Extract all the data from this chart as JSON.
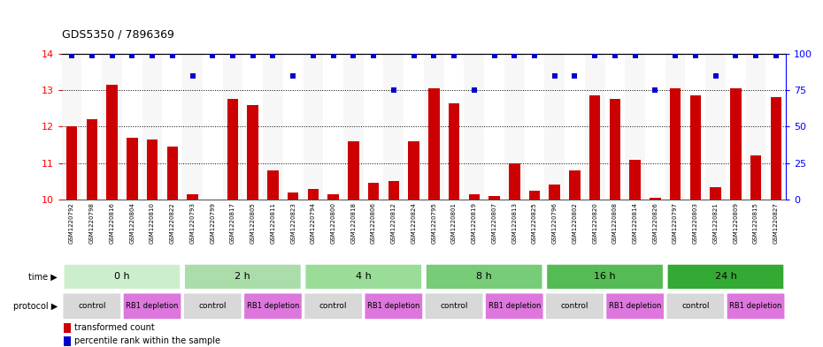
{
  "title": "GDS5350 / 7896369",
  "samples": [
    "GSM1220792",
    "GSM1220798",
    "GSM1220816",
    "GSM1220804",
    "GSM1220810",
    "GSM1220822",
    "GSM1220793",
    "GSM1220799",
    "GSM1220817",
    "GSM1220805",
    "GSM1220811",
    "GSM1220823",
    "GSM1220794",
    "GSM1220800",
    "GSM1220818",
    "GSM1220806",
    "GSM1220812",
    "GSM1220824",
    "GSM1220795",
    "GSM1220801",
    "GSM1220819",
    "GSM1220807",
    "GSM1220813",
    "GSM1220825",
    "GSM1220796",
    "GSM1220802",
    "GSM1220820",
    "GSM1220808",
    "GSM1220814",
    "GSM1220826",
    "GSM1220797",
    "GSM1220803",
    "GSM1220821",
    "GSM1220809",
    "GSM1220815",
    "GSM1220827"
  ],
  "bar_values": [
    12.0,
    12.2,
    13.15,
    11.7,
    11.65,
    11.45,
    10.15,
    10.0,
    12.75,
    12.6,
    10.8,
    10.2,
    10.3,
    10.15,
    11.6,
    10.45,
    10.5,
    11.6,
    13.05,
    12.65,
    10.15,
    10.1,
    11.0,
    10.25,
    10.4,
    10.8,
    12.85,
    12.75,
    11.1,
    10.05,
    13.05,
    12.85,
    10.35,
    13.05,
    11.2,
    12.8
  ],
  "percentile_values": [
    99,
    99,
    99,
    99,
    99,
    99,
    85,
    99,
    99,
    99,
    99,
    85,
    99,
    99,
    99,
    99,
    75,
    99,
    99,
    99,
    75,
    99,
    99,
    99,
    85,
    85,
    99,
    99,
    99,
    75,
    99,
    99,
    85,
    99,
    99,
    99
  ],
  "col_colors": [
    "#f0f0f0",
    "#ffffff"
  ],
  "time_groups": [
    {
      "label": "0 h",
      "start": 0,
      "end": 6,
      "color": "#cceecc"
    },
    {
      "label": "2 h",
      "start": 6,
      "end": 12,
      "color": "#aaddaa"
    },
    {
      "label": "4 h",
      "start": 12,
      "end": 18,
      "color": "#99dd99"
    },
    {
      "label": "8 h",
      "start": 18,
      "end": 24,
      "color": "#77cc77"
    },
    {
      "label": "16 h",
      "start": 24,
      "end": 30,
      "color": "#55bb55"
    },
    {
      "label": "24 h",
      "start": 30,
      "end": 36,
      "color": "#33aa33"
    }
  ],
  "protocol_groups": [
    {
      "label": "control",
      "start": 0,
      "end": 3,
      "color": "#d8d8d8"
    },
    {
      "label": "RB1 depletion",
      "start": 3,
      "end": 6,
      "color": "#dd77dd"
    },
    {
      "label": "control",
      "start": 6,
      "end": 9,
      "color": "#d8d8d8"
    },
    {
      "label": "RB1 depletion",
      "start": 9,
      "end": 12,
      "color": "#dd77dd"
    },
    {
      "label": "control",
      "start": 12,
      "end": 15,
      "color": "#d8d8d8"
    },
    {
      "label": "RB1 depletion",
      "start": 15,
      "end": 18,
      "color": "#dd77dd"
    },
    {
      "label": "control",
      "start": 18,
      "end": 21,
      "color": "#d8d8d8"
    },
    {
      "label": "RB1 depletion",
      "start": 21,
      "end": 24,
      "color": "#dd77dd"
    },
    {
      "label": "control",
      "start": 24,
      "end": 27,
      "color": "#d8d8d8"
    },
    {
      "label": "RB1 depletion",
      "start": 27,
      "end": 30,
      "color": "#dd77dd"
    },
    {
      "label": "control",
      "start": 30,
      "end": 33,
      "color": "#d8d8d8"
    },
    {
      "label": "RB1 depletion",
      "start": 33,
      "end": 36,
      "color": "#dd77dd"
    }
  ],
  "bar_color": "#cc0000",
  "dot_color": "#0000cc",
  "ylim_left": [
    10,
    14
  ],
  "ylim_right": [
    0,
    100
  ],
  "yticks_left": [
    10,
    11,
    12,
    13,
    14
  ],
  "yticks_right": [
    0,
    25,
    50,
    75,
    100
  ],
  "grid_lines": [
    11,
    12,
    13
  ],
  "background_color": "#ffffff",
  "title_fontsize": 9
}
